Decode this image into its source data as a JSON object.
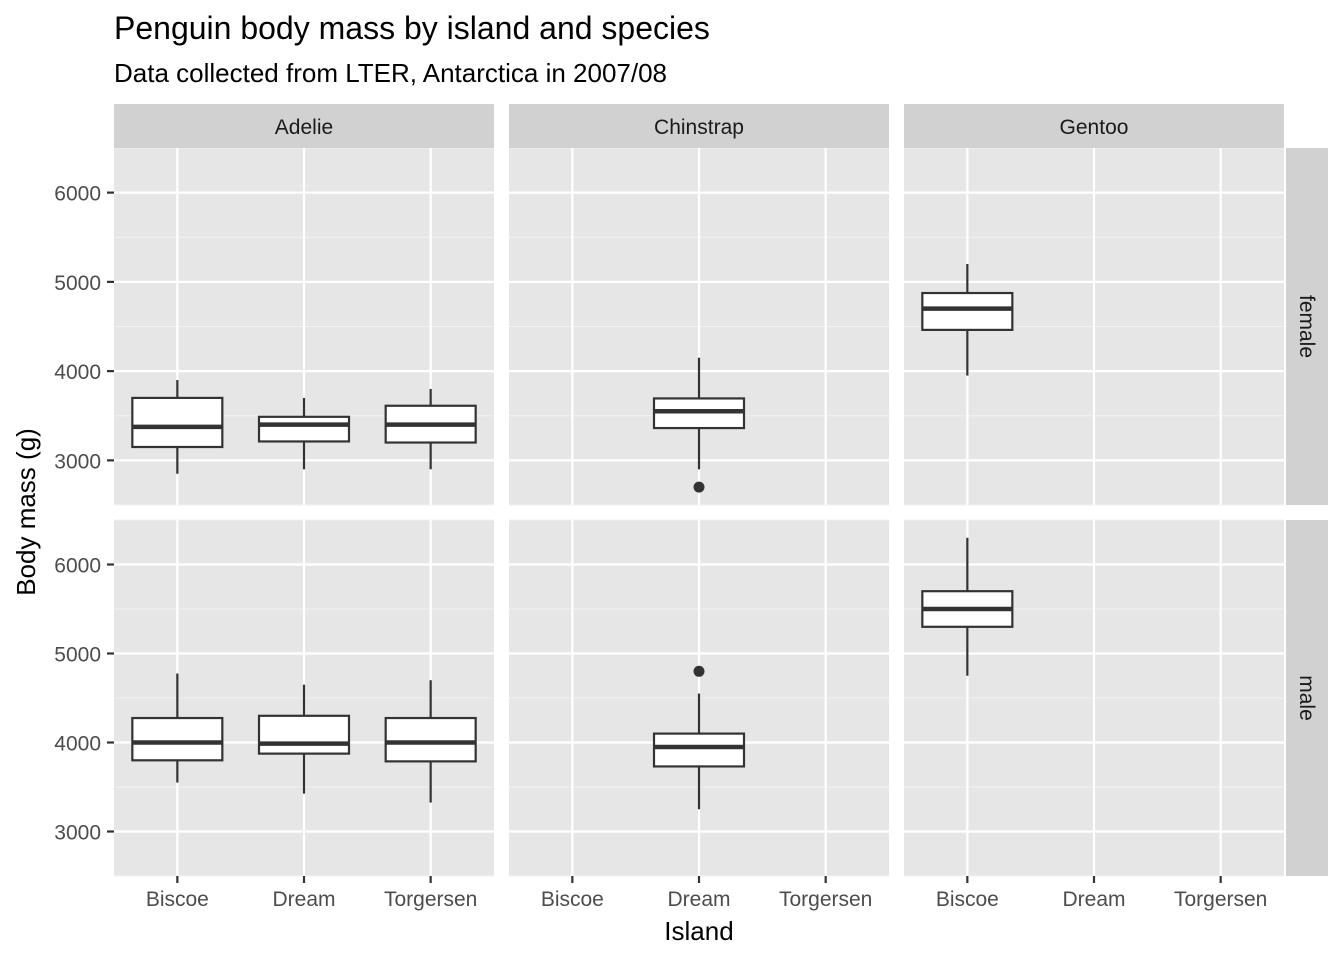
{
  "title": "Penguin body mass by island and species",
  "subtitle": "Data collected from LTER, Antarctica in 2007/08",
  "chart_data": {
    "type": "box",
    "title": "Penguin body mass by island and species",
    "subtitle": "Data collected from LTER, Antarctica in 2007/08",
    "xlabel": "Island",
    "ylabel": "Body mass (g)",
    "ylim": [
      2500,
      6500
    ],
    "y_ticks": [
      3000,
      4000,
      5000,
      6000
    ],
    "x_categories": [
      "Biscoe",
      "Dream",
      "Torgersen"
    ],
    "column_facets": [
      "Adelie",
      "Chinstrap",
      "Gentoo"
    ],
    "row_facets": [
      "female",
      "male"
    ],
    "grid": true,
    "panels": [
      {
        "species": "Adelie",
        "sex": "female",
        "boxes": [
          {
            "island": "Biscoe",
            "whisker_low": 2850,
            "q1": 3150,
            "median": 3375,
            "q3": 3700,
            "whisker_high": 3900,
            "outliers": []
          },
          {
            "island": "Dream",
            "whisker_low": 2900,
            "q1": 3212,
            "median": 3400,
            "q3": 3488,
            "whisker_high": 3700,
            "outliers": []
          },
          {
            "island": "Torgersen",
            "whisker_low": 2900,
            "q1": 3200,
            "median": 3400,
            "q3": 3612,
            "whisker_high": 3800,
            "outliers": []
          }
        ]
      },
      {
        "species": "Chinstrap",
        "sex": "female",
        "boxes": [
          {
            "island": "Dream",
            "whisker_low": 2900,
            "q1": 3362,
            "median": 3550,
            "q3": 3694,
            "whisker_high": 4150,
            "outliers": [
              2700
            ]
          }
        ]
      },
      {
        "species": "Gentoo",
        "sex": "female",
        "boxes": [
          {
            "island": "Biscoe",
            "whisker_low": 3950,
            "q1": 4462,
            "median": 4700,
            "q3": 4875,
            "whisker_high": 5200,
            "outliers": []
          }
        ]
      },
      {
        "species": "Adelie",
        "sex": "male",
        "boxes": [
          {
            "island": "Biscoe",
            "whisker_low": 3550,
            "q1": 3800,
            "median": 4000,
            "q3": 4275,
            "whisker_high": 4775,
            "outliers": []
          },
          {
            "island": "Dream",
            "whisker_low": 3425,
            "q1": 3875,
            "median": 3988,
            "q3": 4300,
            "whisker_high": 4650,
            "outliers": []
          },
          {
            "island": "Torgersen",
            "whisker_low": 3325,
            "q1": 3788,
            "median": 4000,
            "q3": 4275,
            "whisker_high": 4700,
            "outliers": []
          }
        ]
      },
      {
        "species": "Chinstrap",
        "sex": "male",
        "boxes": [
          {
            "island": "Dream",
            "whisker_low": 3250,
            "q1": 3731,
            "median": 3950,
            "q3": 4100,
            "whisker_high": 4550,
            "outliers": [
              4800
            ]
          }
        ]
      },
      {
        "species": "Gentoo",
        "sex": "male",
        "boxes": [
          {
            "island": "Biscoe",
            "whisker_low": 4750,
            "q1": 5300,
            "median": 5500,
            "q3": 5700,
            "whisker_high": 6300,
            "outliers": []
          }
        ]
      }
    ]
  },
  "colors": {
    "panel_background": "#e6e6e6",
    "strip_background": "#d1d1d1",
    "grid_major": "#ffffff",
    "grid_minor": "#f2f2f2",
    "box_stroke": "#333333",
    "box_fill": "#ffffff",
    "tick_label": "#4d4d4d",
    "strip_text": "#1a1a1a"
  }
}
